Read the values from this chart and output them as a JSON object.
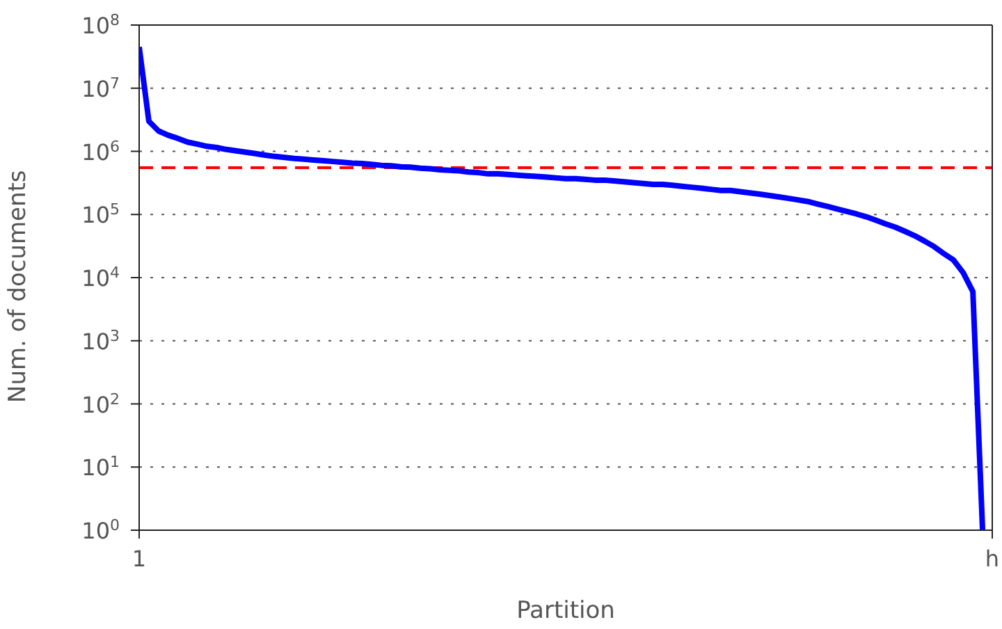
{
  "chart_data": {
    "type": "line",
    "xlabel": "Partition",
    "ylabel": "Num. of documents",
    "categories": [
      "1",
      null,
      null,
      null,
      null,
      null,
      null,
      null,
      null,
      null,
      null,
      null,
      null,
      null,
      null,
      null,
      null,
      null,
      null,
      null,
      null,
      null,
      null,
      null,
      null,
      null,
      null,
      null,
      null,
      null,
      null,
      null,
      null,
      null,
      null,
      null,
      null,
      null,
      null,
      null,
      null,
      null,
      null,
      null,
      null,
      null,
      null,
      null,
      null,
      null,
      null,
      null,
      null,
      null,
      null,
      null,
      null,
      null,
      null,
      null,
      null,
      null,
      null,
      null,
      null,
      null,
      null,
      null,
      null,
      null,
      null,
      null,
      null,
      null,
      null,
      null,
      null,
      null,
      null,
      null,
      null,
      null,
      null,
      null,
      null,
      null,
      null,
      null,
      "h"
    ],
    "series": [
      {
        "color": "#0000ff",
        "values": [
          45000000,
          3000000,
          2100000,
          1800000,
          1600000,
          1400000,
          1300000,
          1200000,
          1150000,
          1070000,
          1020000,
          970000,
          920000,
          870000,
          830000,
          800000,
          770000,
          750000,
          730000,
          710000,
          690000,
          670000,
          650000,
          640000,
          620000,
          600000,
          590000,
          570000,
          560000,
          540000,
          530000,
          510000,
          500000,
          490000,
          470000,
          460000,
          440000,
          440000,
          430000,
          420000,
          410000,
          400000,
          390000,
          380000,
          370000,
          370000,
          360000,
          350000,
          350000,
          340000,
          330000,
          320000,
          310000,
          300000,
          300000,
          290000,
          280000,
          270000,
          260000,
          250000,
          240000,
          240000,
          230000,
          220000,
          210000,
          200000,
          190000,
          180000,
          170000,
          160000,
          146000,
          134000,
          122000,
          112000,
          102000,
          92000,
          81000,
          71000,
          63000,
          54000,
          46000,
          38000,
          31000,
          24000,
          19000,
          12000,
          6000,
          1,
          null
        ]
      }
    ],
    "log": "y",
    "ylim": [
      1,
      100000000
    ],
    "yticks": [
      {
        "value": 1,
        "label": "10$^{0}$"
      },
      {
        "value": 10,
        "label": "10$^{1}$"
      },
      {
        "value": 100,
        "label": "10$^{2}$"
      },
      {
        "value": 1000,
        "label": "10$^{3}$"
      },
      {
        "value": 10000,
        "label": "10$^{4}$"
      },
      {
        "value": 100000,
        "label": "10$^{5}$"
      },
      {
        "value": 1000000,
        "label": "10$^{6}$"
      },
      {
        "value": 10000000,
        "label": "10$^{7}$"
      },
      {
        "value": 100000000,
        "label": "10$^{8}$"
      }
    ],
    "ref_lines": [
      {
        "axis": "y",
        "value": 550000,
        "color": "#ff0000",
        "line_style": "dashed"
      }
    ],
    "grid": "y",
    "legend": false,
    "marker": "none",
    "line_style": "solid"
  }
}
